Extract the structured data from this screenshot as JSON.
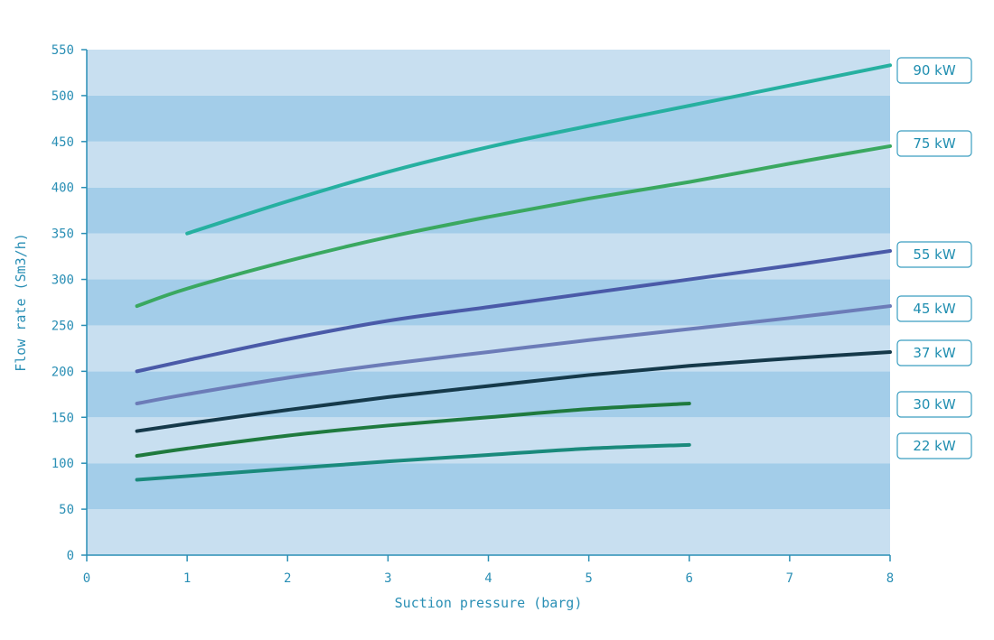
{
  "chart_data": {
    "type": "line",
    "title": "",
    "xlabel": "Suction pressure (barg)",
    "ylabel": "Flow rate (Sm3/h)",
    "xlim": [
      0,
      8
    ],
    "ylim": [
      0,
      550
    ],
    "x_ticks": [
      0,
      1,
      2,
      3,
      4,
      5,
      6,
      7,
      8
    ],
    "y_ticks": [
      0,
      50,
      100,
      150,
      200,
      250,
      300,
      350,
      400,
      450,
      500,
      550
    ],
    "background_bands": {
      "light": "#c8dff0",
      "dark": "#a3cde9"
    },
    "legend_placement": "right",
    "series": [
      {
        "name": "90 kW",
        "color": "#26b0a0",
        "x": [
          1,
          2,
          3,
          4,
          5,
          6,
          7,
          8
        ],
        "y": [
          350,
          385,
          417,
          444,
          467,
          489,
          511,
          533
        ]
      },
      {
        "name": "75 kW",
        "color": "#3aa860",
        "x": [
          0.5,
          1,
          2,
          3,
          4,
          5,
          6,
          7,
          8
        ],
        "y": [
          271,
          290,
          320,
          346,
          368,
          388,
          406,
          426,
          445
        ]
      },
      {
        "name": "55 kW",
        "color": "#4a5aa8",
        "x": [
          0.5,
          1,
          2,
          3,
          4,
          5,
          6,
          7,
          8
        ],
        "y": [
          200,
          212,
          235,
          255,
          270,
          285,
          300,
          315,
          331
        ]
      },
      {
        "name": "45 kW",
        "color": "#6c7cb8",
        "x": [
          0.5,
          1,
          2,
          3,
          4,
          5,
          6,
          7,
          8
        ],
        "y": [
          165,
          175,
          193,
          208,
          221,
          234,
          246,
          258,
          271
        ]
      },
      {
        "name": "37 kW",
        "color": "#15394a",
        "x": [
          0.5,
          1,
          2,
          3,
          4,
          5,
          6,
          7,
          8
        ],
        "y": [
          135,
          143,
          158,
          172,
          184,
          196,
          206,
          214,
          221
        ]
      },
      {
        "name": "30 kW",
        "color": "#1f7a3e",
        "x": [
          0.5,
          1,
          2,
          3,
          4,
          5,
          6
        ],
        "y": [
          108,
          116,
          130,
          141,
          150,
          159,
          165
        ]
      },
      {
        "name": "22 kW",
        "color": "#1a8a7c",
        "x": [
          0.5,
          1,
          2,
          3,
          4,
          5,
          6
        ],
        "y": [
          82,
          86,
          94,
          102,
          109,
          116,
          120
        ]
      }
    ]
  }
}
